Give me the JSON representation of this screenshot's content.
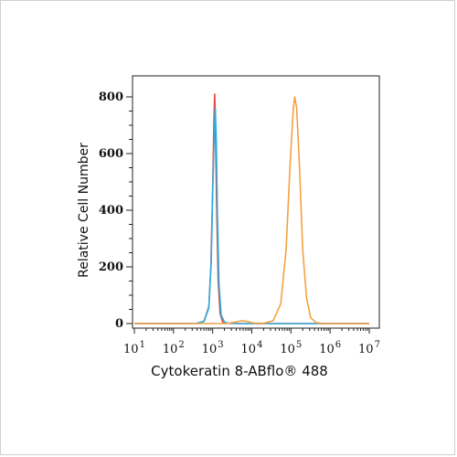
{
  "chart_data": {
    "type": "line",
    "xlabel": "Cytokeratin 8-ABflo® 488",
    "ylabel": "Relative Cell Number",
    "xscale": "log",
    "xlim": [
      10,
      10000000
    ],
    "ylim": [
      0,
      850
    ],
    "y_ticks": [
      {
        "value": 0,
        "label": "0"
      },
      {
        "value": 200,
        "label": "200"
      },
      {
        "value": 400,
        "label": "400"
      },
      {
        "value": 600,
        "label": "600"
      },
      {
        "value": 800,
        "label": "800"
      }
    ],
    "x_ticks": [
      {
        "value": 10,
        "base": "10",
        "exp": "1"
      },
      {
        "value": 100,
        "base": "10",
        "exp": "2"
      },
      {
        "value": 1000,
        "base": "10",
        "exp": "3"
      },
      {
        "value": 10000,
        "base": "10",
        "exp": "4"
      },
      {
        "value": 100000,
        "base": "10",
        "exp": "5"
      },
      {
        "value": 1000000,
        "base": "10",
        "exp": "6"
      },
      {
        "value": 10000000,
        "base": "10",
        "exp": "7"
      }
    ],
    "grid": false,
    "series": [
      {
        "color": "#e8453c",
        "points": [
          [
            10,
            0
          ],
          [
            200,
            0
          ],
          [
            400,
            1
          ],
          [
            600,
            8
          ],
          [
            800,
            60
          ],
          [
            900,
            200
          ],
          [
            1000,
            480
          ],
          [
            1080,
            720
          ],
          [
            1130,
            810
          ],
          [
            1180,
            690
          ],
          [
            1260,
            420
          ],
          [
            1380,
            150
          ],
          [
            1550,
            35
          ],
          [
            1800,
            6
          ],
          [
            2300,
            1
          ],
          [
            5000,
            0
          ],
          [
            10000000,
            0
          ]
        ]
      },
      {
        "color": "#2ab0e0",
        "points": [
          [
            10,
            0
          ],
          [
            200,
            0
          ],
          [
            400,
            1
          ],
          [
            600,
            7
          ],
          [
            800,
            55
          ],
          [
            920,
            220
          ],
          [
            1020,
            500
          ],
          [
            1110,
            690
          ],
          [
            1170,
            760
          ],
          [
            1240,
            640
          ],
          [
            1320,
            400
          ],
          [
            1450,
            140
          ],
          [
            1650,
            30
          ],
          [
            2000,
            5
          ],
          [
            2500,
            1
          ],
          [
            5000,
            0
          ],
          [
            10000000,
            0
          ]
        ]
      },
      {
        "color": "#f5a040",
        "points": [
          [
            10,
            0
          ],
          [
            2200,
            0
          ],
          [
            3800,
            5
          ],
          [
            5500,
            10
          ],
          [
            7500,
            8
          ],
          [
            11000,
            2
          ],
          [
            20000,
            1
          ],
          [
            35000,
            10
          ],
          [
            55000,
            70
          ],
          [
            75000,
            260
          ],
          [
            95000,
            560
          ],
          [
            115000,
            760
          ],
          [
            125000,
            800
          ],
          [
            140000,
            760
          ],
          [
            165000,
            560
          ],
          [
            200000,
            260
          ],
          [
            250000,
            90
          ],
          [
            320000,
            20
          ],
          [
            450000,
            3
          ],
          [
            700000,
            0
          ],
          [
            10000000,
            0
          ]
        ]
      }
    ]
  }
}
